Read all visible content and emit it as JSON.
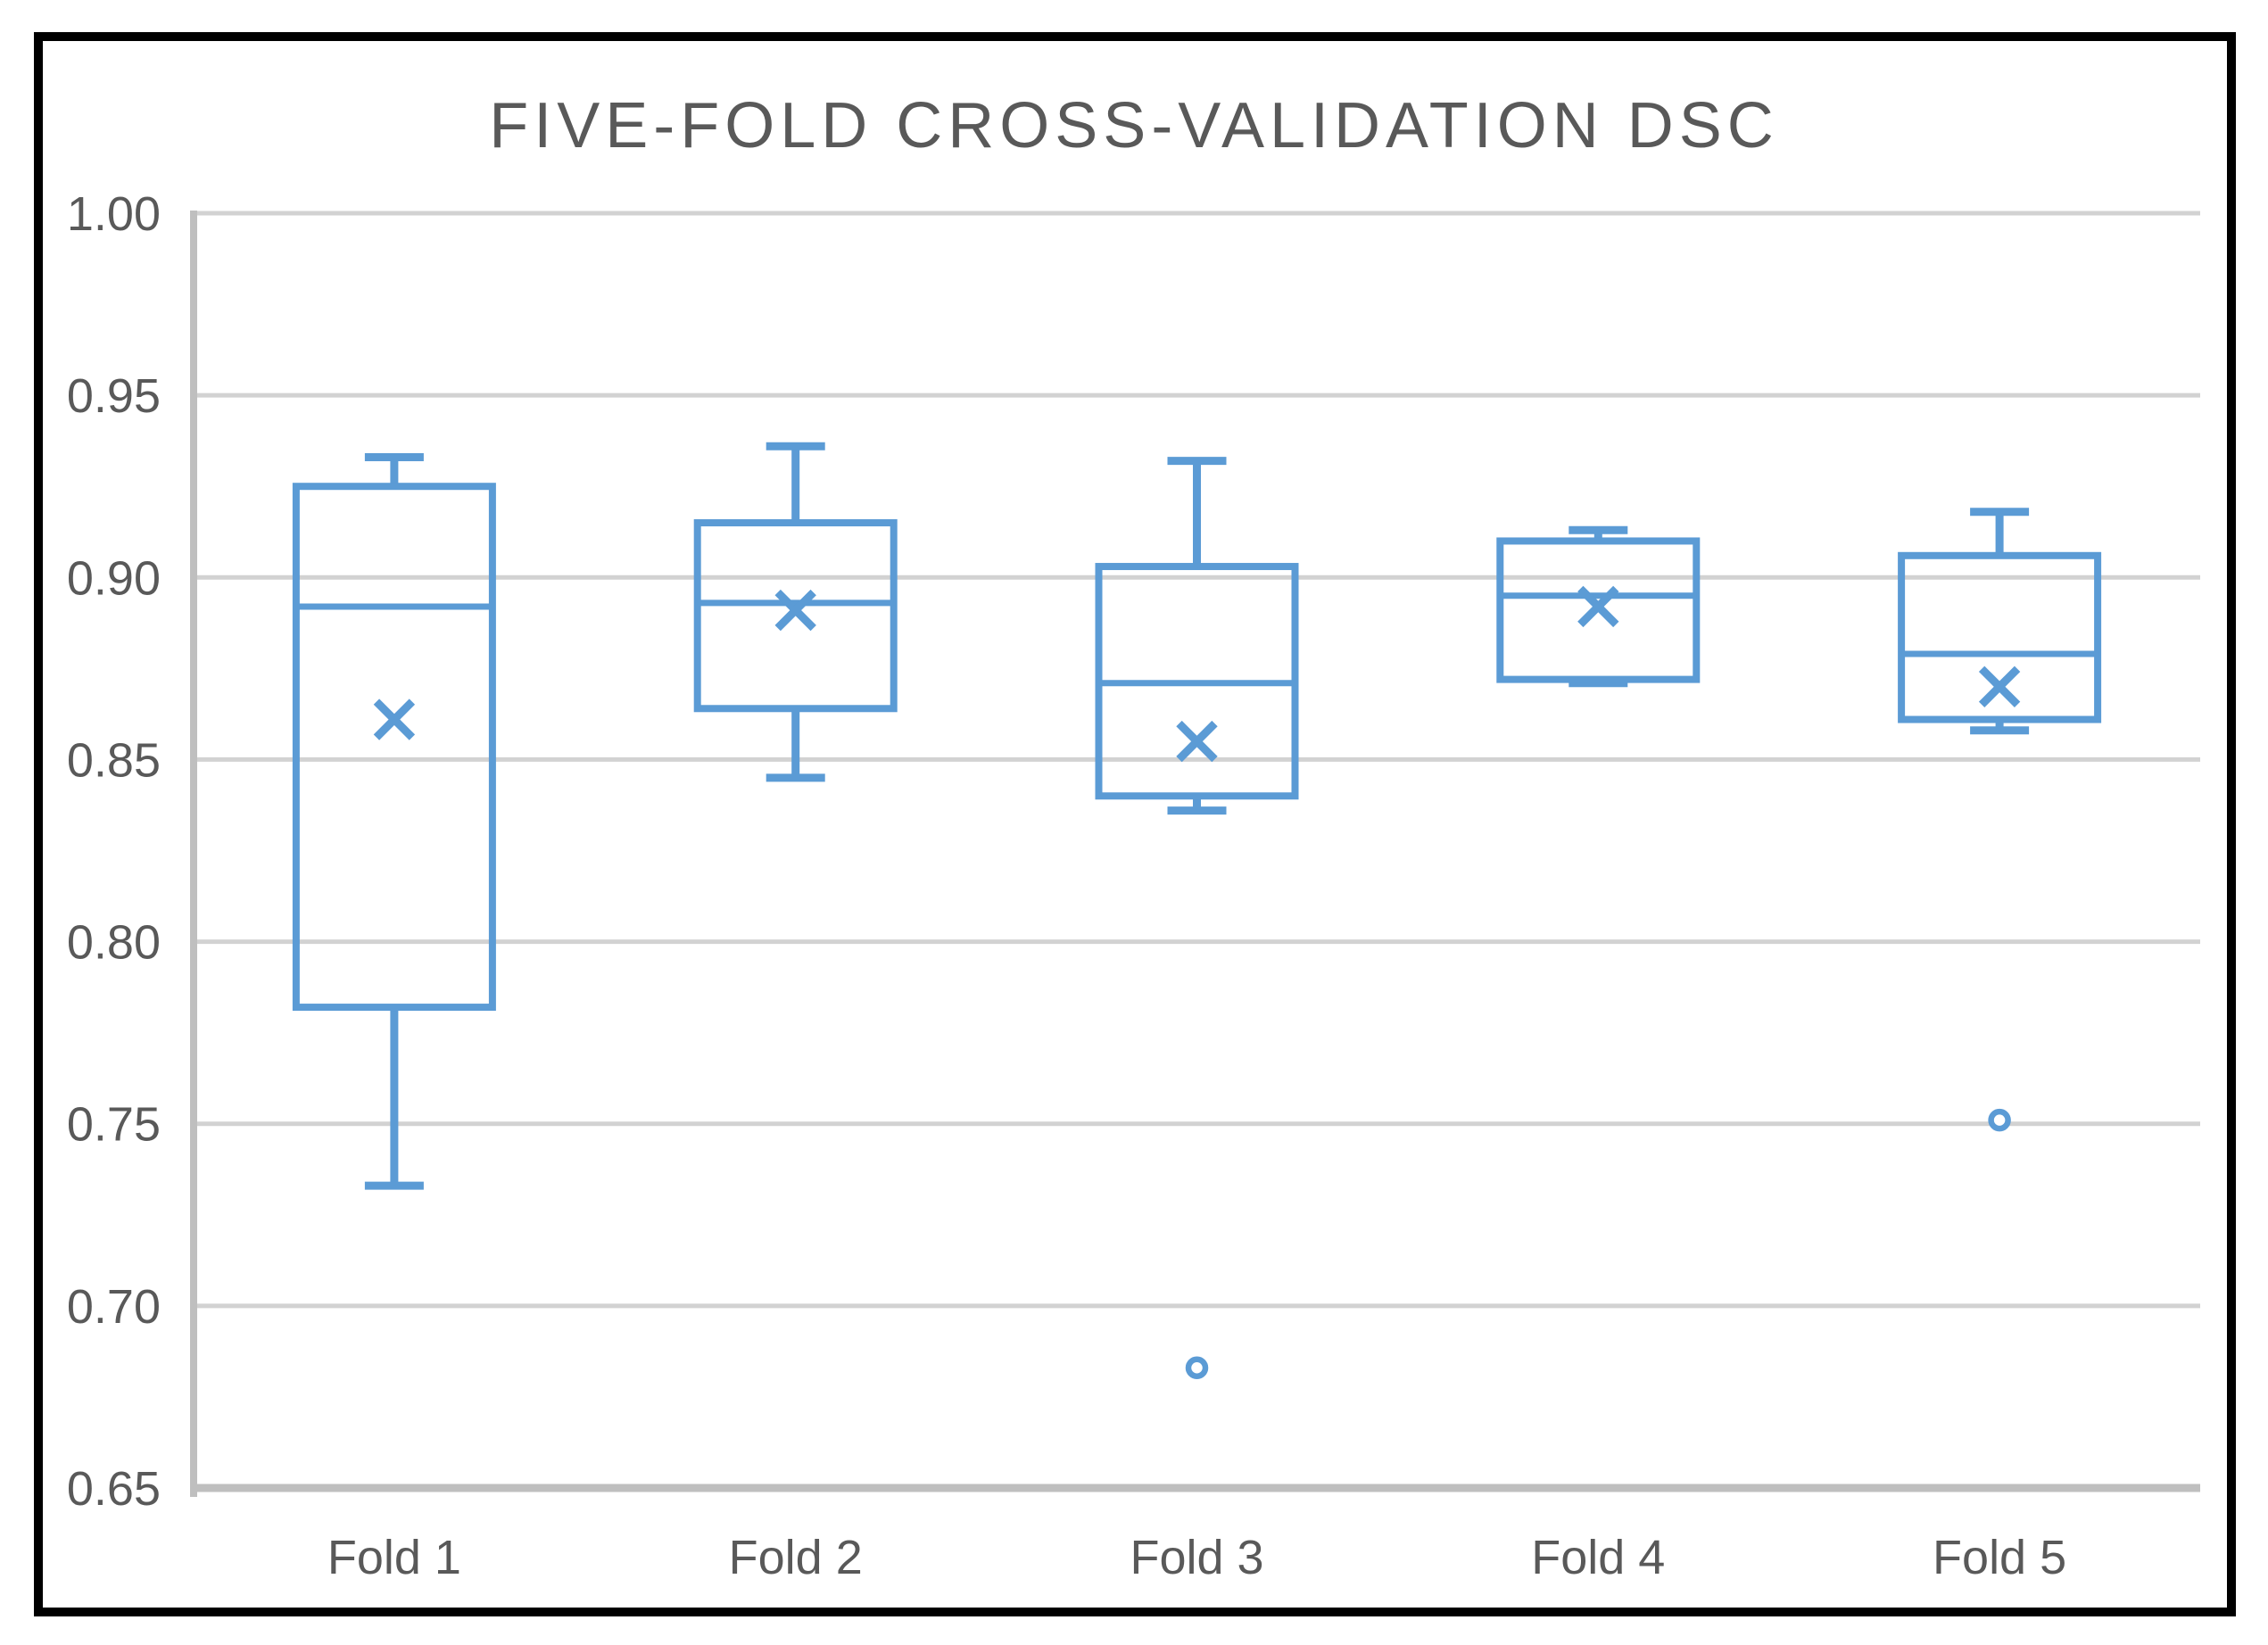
{
  "theme": {
    "background": "#ffffff",
    "frame_border": "#000000",
    "box_blue": "#5B9BD5",
    "grid_gray": "#D2D2D2",
    "axis_gray": "#BFBFBF",
    "text_gray": "#595959"
  },
  "chart_data": {
    "type": "boxplot",
    "title": "FIVE-FOLD CROSS-VALIDATION DSC",
    "xlabel": "",
    "ylabel": "",
    "grid": true,
    "legend": false,
    "categories": [
      "Fold 1",
      "Fold 2",
      "Fold 3",
      "Fold 4",
      "Fold 5"
    ],
    "y_axis": {
      "min": 0.65,
      "max": 1.0,
      "tick_step": 0.05,
      "ticks": [
        1.0,
        0.95,
        0.9,
        0.85,
        0.8,
        0.75,
        0.7,
        0.65
      ],
      "tick_labels": [
        "1.00",
        "0.95",
        "0.90",
        "0.85",
        "0.80",
        "0.75",
        "0.70",
        "0.65"
      ]
    },
    "series": [
      {
        "category": "Fold 1",
        "whisker_low": 0.733,
        "q1": 0.782,
        "median": 0.892,
        "q3": 0.925,
        "whisker_high": 0.933,
        "mean": 0.861,
        "outliers": []
      },
      {
        "category": "Fold 2",
        "whisker_low": 0.845,
        "q1": 0.864,
        "median": 0.893,
        "q3": 0.915,
        "whisker_high": 0.936,
        "mean": 0.891,
        "outliers": []
      },
      {
        "category": "Fold 3",
        "whisker_low": 0.836,
        "q1": 0.84,
        "median": 0.871,
        "q3": 0.903,
        "whisker_high": 0.932,
        "mean": 0.855,
        "outliers": [
          0.683
        ]
      },
      {
        "category": "Fold 4",
        "whisker_low": 0.871,
        "q1": 0.872,
        "median": 0.895,
        "q3": 0.91,
        "whisker_high": 0.913,
        "mean": 0.892,
        "outliers": []
      },
      {
        "category": "Fold 5",
        "whisker_low": 0.858,
        "q1": 0.861,
        "median": 0.879,
        "q3": 0.906,
        "whisker_high": 0.918,
        "mean": 0.87,
        "outliers": [
          0.751
        ]
      }
    ]
  }
}
